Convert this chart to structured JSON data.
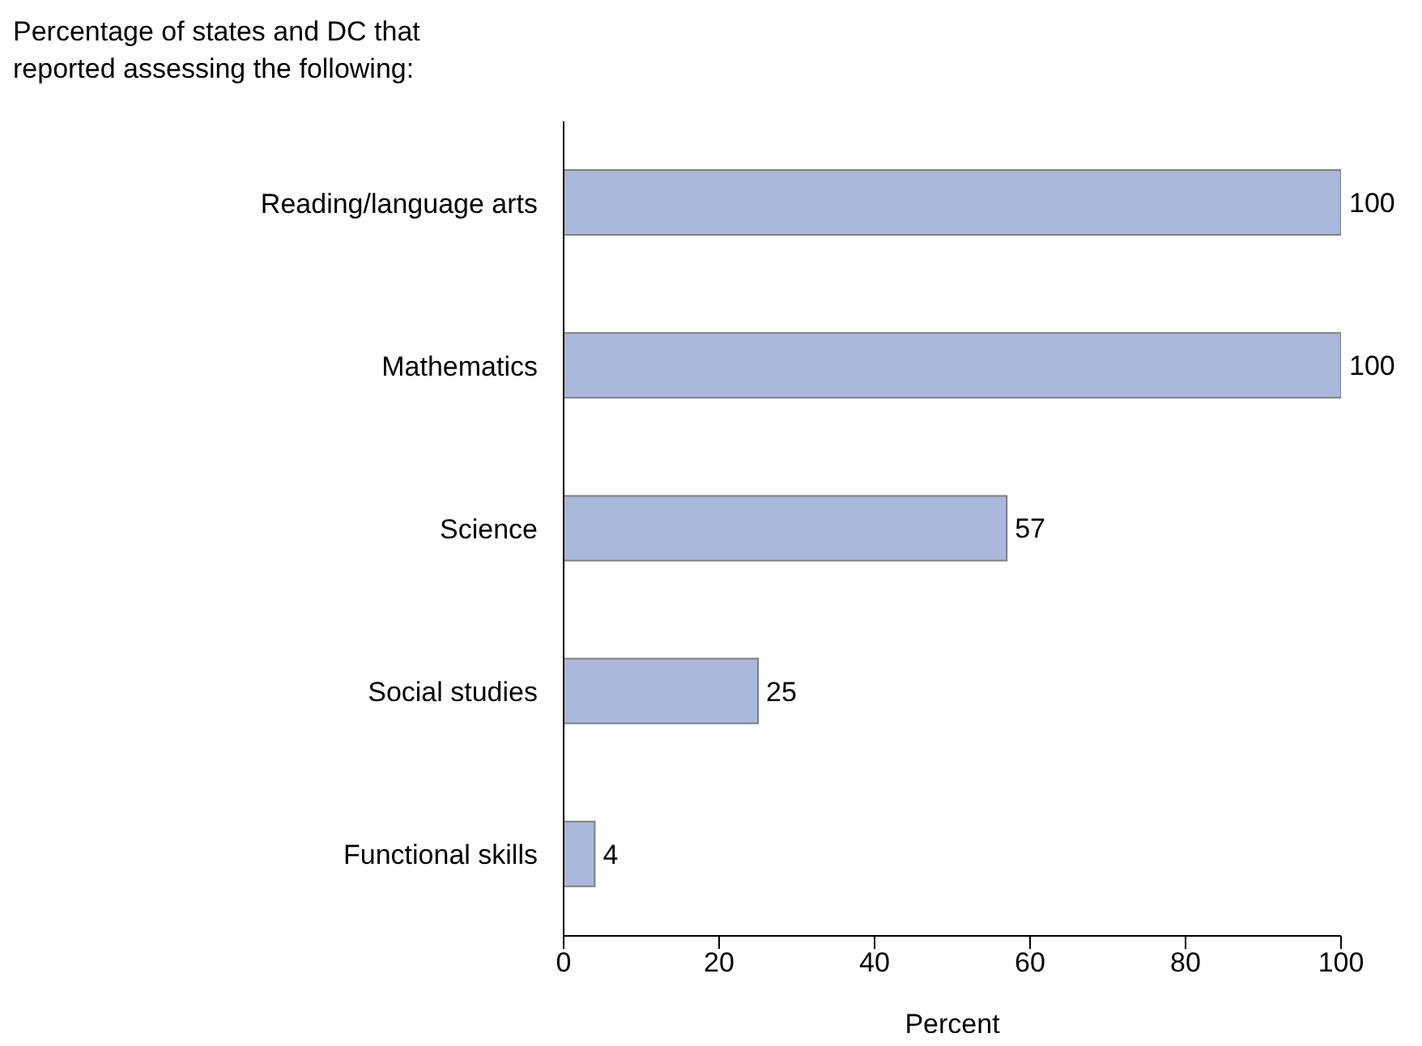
{
  "chart_data": {
    "type": "bar",
    "orientation": "horizontal",
    "title": "Percentage of states and DC that reported assessing the following:",
    "xlabel": "Percent",
    "categories": [
      "Reading/language arts",
      "Mathematics",
      "Science",
      "Social studies",
      "Functional skills"
    ],
    "values": [
      100,
      100,
      57,
      25,
      4
    ],
    "color": "#aab9db",
    "xlim": [
      0,
      100
    ],
    "xticks": [
      0,
      20,
      40,
      60,
      80,
      100
    ],
    "grid": false,
    "legend": false,
    "data_labels": true
  }
}
